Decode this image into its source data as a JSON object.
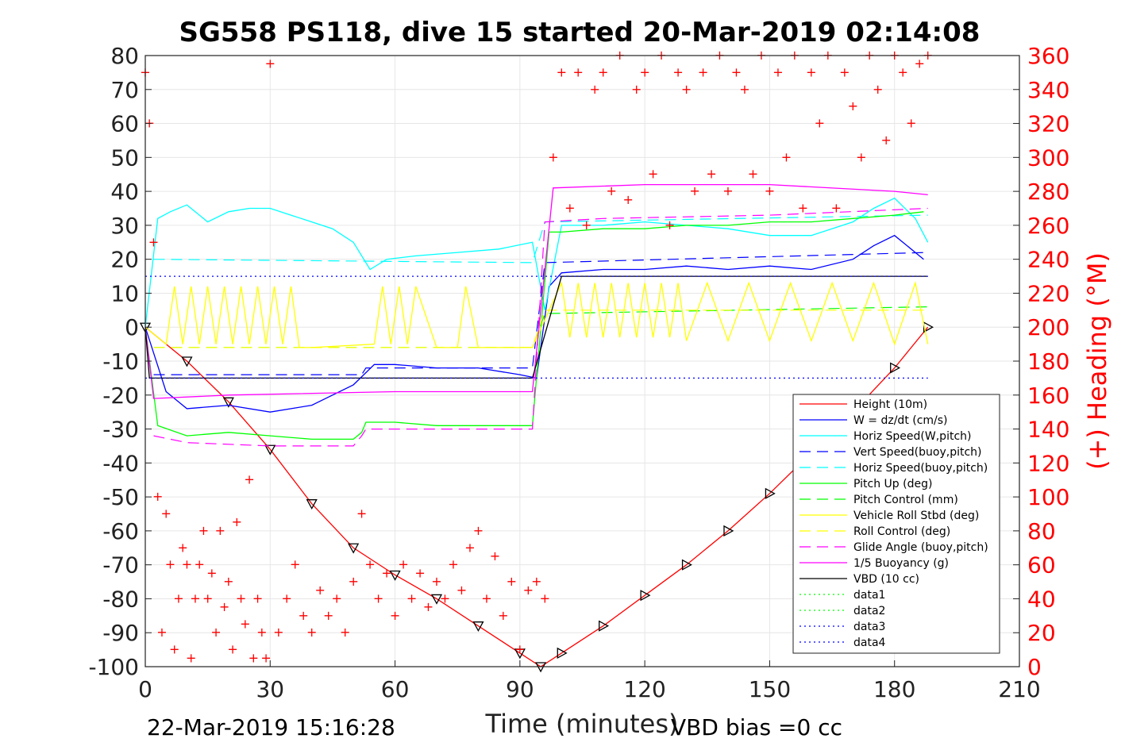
{
  "chart_data": {
    "type": "line",
    "title": "SG558 PS118, dive 15 started 20-Mar-2019 02:14:08",
    "xlabel": "Time (minutes)",
    "ylabel": "",
    "y2label": "(+) Heading (°M)",
    "xlim": [
      0,
      210
    ],
    "ylim": [
      -100,
      80
    ],
    "y2lim": [
      0,
      360
    ],
    "xticks": [
      "0",
      "30",
      "60",
      "90",
      "120",
      "150",
      "180",
      "210"
    ],
    "yticks": [
      "80",
      "70",
      "60",
      "50",
      "40",
      "30",
      "20",
      "10",
      "0",
      "-10",
      "-20",
      "-30",
      "-40",
      "-50",
      "-60",
      "-70",
      "-80",
      "-90",
      "-100"
    ],
    "y2ticks": [
      "360",
      "340",
      "320",
      "300",
      "280",
      "260",
      "240",
      "220",
      "200",
      "180",
      "160",
      "140",
      "120",
      "100",
      "80",
      "60",
      "40",
      "20",
      "0"
    ],
    "grid": true,
    "legend_position": "bottom-right",
    "footer_left": "22-Mar-2019 15:16:28",
    "footer_right": "VBD bias =0 cc",
    "series": [
      {
        "name": "Height (10m)",
        "color": "#ff0000",
        "style": "solid",
        "x": [
          0,
          10,
          20,
          30,
          40,
          50,
          60,
          70,
          80,
          90,
          95,
          100,
          110,
          120,
          130,
          140,
          150,
          160,
          170,
          180,
          188
        ],
        "y": [
          0,
          -10,
          -22,
          -36,
          -52,
          -65,
          -73,
          -80,
          -88,
          -96,
          -100,
          -96,
          -88,
          -79,
          -70,
          -60,
          -49,
          -37,
          -25,
          -12,
          0
        ]
      },
      {
        "name": "W = dz/dt (cm/s)",
        "color": "#0000ff",
        "style": "solid",
        "x": [
          0,
          5,
          10,
          20,
          30,
          40,
          50,
          55,
          60,
          70,
          80,
          90,
          94,
          97,
          100,
          110,
          120,
          130,
          140,
          150,
          160,
          170,
          175,
          180,
          187
        ],
        "y": [
          0,
          -19,
          -24,
          -23,
          -25,
          -23,
          -17,
          -11,
          -11,
          -12,
          -12,
          -14,
          -15,
          12,
          16,
          17,
          17,
          18,
          17,
          18,
          17,
          20,
          24,
          27,
          20
        ]
      },
      {
        "name": "Horiz Speed(W,pitch)",
        "color": "#00ffff",
        "style": "solid",
        "x": [
          0,
          3,
          6,
          10,
          15,
          20,
          25,
          30,
          35,
          40,
          45,
          50,
          54,
          58,
          65,
          75,
          85,
          93,
          96,
          100,
          110,
          120,
          130,
          140,
          150,
          160,
          170,
          175,
          180,
          185,
          188
        ],
        "y": [
          0,
          32,
          34,
          36,
          31,
          34,
          35,
          35,
          33,
          31,
          29,
          25,
          17,
          20,
          21,
          22,
          23,
          25,
          5,
          30,
          30,
          31,
          30,
          29,
          27,
          27,
          31,
          35,
          38,
          32,
          25
        ]
      },
      {
        "name": "Vert Speed(buoy,pitch)",
        "color": "#0000ff",
        "style": "dashed",
        "x": [
          2,
          52,
          53,
          93,
          96,
          188
        ],
        "y": [
          -14,
          -14,
          -12,
          -12,
          19,
          22
        ]
      },
      {
        "name": "Horiz Speed(buoy,pitch)",
        "color": "#00ffff",
        "style": "dashed",
        "x": [
          2,
          93,
          96,
          188
        ],
        "y": [
          20,
          19,
          31,
          33
        ]
      },
      {
        "name": "Pitch Up (deg)",
        "color": "#00ff00",
        "style": "solid",
        "x": [
          0,
          3,
          10,
          20,
          30,
          40,
          50,
          52,
          53,
          60,
          70,
          80,
          93,
          97,
          100,
          110,
          120,
          130,
          140,
          150,
          160,
          170,
          180,
          187
        ],
        "y": [
          0,
          -29,
          -32,
          -31,
          -32,
          -33,
          -33,
          -31,
          -28,
          -28,
          -29,
          -29,
          -29,
          28,
          28,
          29,
          29,
          30,
          30,
          31,
          31,
          32,
          33,
          34
        ]
      },
      {
        "name": "Pitch Control (mm)",
        "color": "#00ff00",
        "style": "dashed",
        "x": [
          2,
          93,
          96,
          188
        ],
        "y": [
          -6,
          -6,
          4,
          6
        ]
      },
      {
        "name": "Vehicle Roll Stbd (deg)",
        "color": "#ffff00",
        "style": "solid",
        "x": [
          0,
          5,
          7,
          9,
          11,
          13,
          15,
          17,
          19,
          21,
          23,
          25,
          27,
          29,
          31,
          33,
          35,
          37,
          40,
          55,
          57,
          59,
          61,
          63,
          65,
          70,
          75,
          77,
          80,
          90,
          93,
          97,
          100,
          102,
          104,
          106,
          108,
          110,
          112,
          114,
          116,
          118,
          120,
          122,
          124,
          126,
          128,
          130,
          135,
          140,
          145,
          150,
          155,
          160,
          165,
          170,
          175,
          180,
          185,
          188
        ],
        "y": [
          0,
          -5,
          12,
          -5,
          12,
          -5,
          12,
          -5,
          12,
          -5,
          12,
          -5,
          12,
          -5,
          12,
          -5,
          12,
          -6,
          -6,
          -5,
          12,
          -5,
          12,
          -5,
          12,
          -6,
          -6,
          12,
          -6,
          -6,
          -6,
          5,
          13,
          -3,
          13,
          -3,
          13,
          -3,
          13,
          -3,
          13,
          -3,
          13,
          -3,
          13,
          -3,
          13,
          -4,
          13,
          -4,
          13,
          -4,
          13,
          -4,
          13,
          -4,
          13,
          -5,
          13,
          -5
        ]
      },
      {
        "name": "Roll Control (deg)",
        "color": "#ffff00",
        "style": "dashed",
        "x": [
          2,
          93,
          96,
          188
        ],
        "y": [
          -6,
          -6,
          5,
          5
        ]
      },
      {
        "name": "Glide Angle (buoy,pitch)",
        "color": "#ff00ff",
        "style": "dashed",
        "x": [
          2,
          10,
          30,
          50,
          52,
          53,
          93,
          96,
          110,
          150,
          188
        ],
        "y": [
          -32,
          -34,
          -35,
          -35,
          -32,
          -30,
          -30,
          31,
          32,
          33,
          35
        ]
      },
      {
        "name": "1/5 Buoyancy (g)",
        "color": "#ff00ff",
        "style": "solid",
        "x": [
          0,
          2,
          20,
          60,
          93,
          98,
          120,
          150,
          180,
          188
        ],
        "y": [
          0,
          -21,
          -20,
          -19,
          -19,
          41,
          42,
          42,
          40,
          39
        ]
      },
      {
        "name": "VBD (10 cc)",
        "color": "#000000",
        "style": "solid",
        "x": [
          0,
          1,
          93,
          100,
          188
        ],
        "y": [
          0,
          -15,
          -15,
          15,
          15
        ]
      },
      {
        "name": "data1",
        "color": "#00ff00",
        "style": "dotted",
        "x": [],
        "y": []
      },
      {
        "name": "data2",
        "color": "#00ff00",
        "style": "dotted",
        "x": [],
        "y": []
      },
      {
        "name": "data3",
        "color": "#0000ff",
        "style": "dotted",
        "x": [
          0,
          188
        ],
        "y": [
          15,
          15
        ]
      },
      {
        "name": "data4",
        "color": "#0000ff",
        "style": "dotted",
        "x": [
          0,
          188
        ],
        "y": [
          -15,
          -15
        ]
      },
      {
        "name": "(+) Heading (°M)",
        "color": "#ff0000",
        "style": "markers",
        "axis": "right",
        "x": [
          0,
          1,
          2,
          3,
          4,
          5,
          6,
          7,
          8,
          9,
          10,
          11,
          12,
          13,
          14,
          15,
          16,
          17,
          18,
          19,
          20,
          21,
          22,
          23,
          24,
          25,
          26,
          27,
          28,
          29,
          30,
          32,
          34,
          36,
          38,
          40,
          42,
          44,
          46,
          48,
          50,
          52,
          54,
          56,
          58,
          60,
          62,
          64,
          66,
          68,
          70,
          72,
          74,
          76,
          78,
          80,
          82,
          84,
          86,
          88,
          90,
          92,
          94,
          96,
          98,
          100,
          102,
          104,
          106,
          108,
          110,
          112,
          114,
          116,
          118,
          120,
          122,
          124,
          126,
          128,
          130,
          132,
          134,
          136,
          138,
          140,
          142,
          144,
          146,
          148,
          150,
          152,
          154,
          156,
          158,
          160,
          162,
          164,
          166,
          168,
          170,
          172,
          174,
          176,
          178,
          180,
          182,
          184,
          186,
          188
        ],
        "y": [
          350,
          320,
          250,
          100,
          20,
          90,
          60,
          10,
          40,
          70,
          60,
          5,
          40,
          60,
          80,
          40,
          55,
          20,
          80,
          35,
          50,
          10,
          85,
          40,
          25,
          110,
          5,
          40,
          20,
          5,
          355,
          20,
          40,
          60,
          30,
          20,
          45,
          30,
          40,
          20,
          50,
          90,
          60,
          40,
          55,
          30,
          60,
          40,
          55,
          35,
          50,
          40,
          60,
          45,
          70,
          80,
          40,
          65,
          30,
          50,
          10,
          45,
          50,
          40,
          300,
          350,
          270,
          350,
          260,
          340,
          350,
          280,
          360,
          275,
          340,
          350,
          290,
          360,
          260,
          350,
          340,
          280,
          350,
          290,
          360,
          280,
          350,
          340,
          290,
          360,
          280,
          350,
          300,
          360,
          270,
          350,
          320,
          360,
          270,
          350,
          330,
          300,
          360,
          340,
          310,
          360,
          350,
          320,
          355,
          360
        ]
      }
    ]
  }
}
